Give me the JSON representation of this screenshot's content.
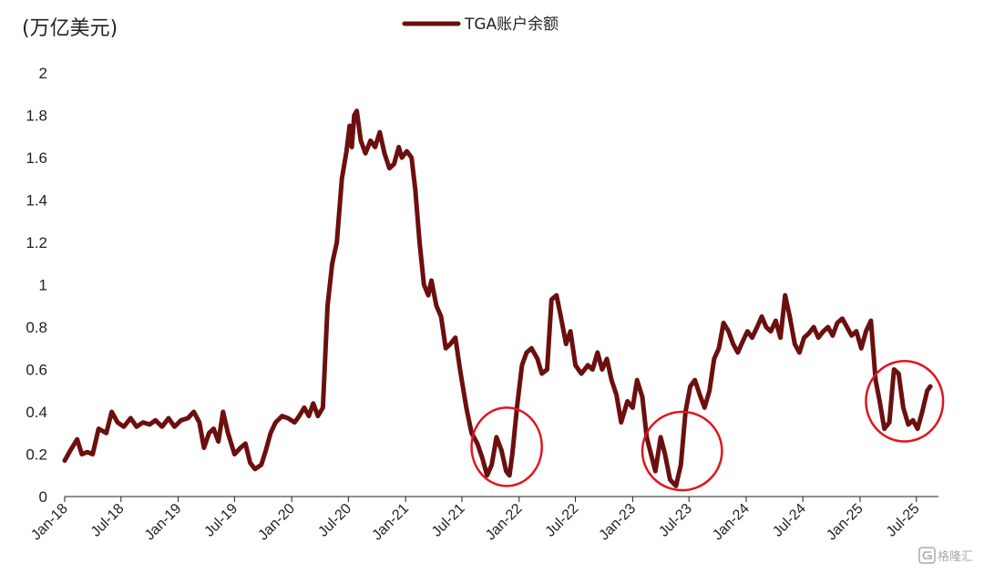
{
  "chart_data": {
    "type": "line",
    "ylabel": "(万亿美元)",
    "ylim": [
      0,
      2
    ],
    "yticks": [
      "0",
      "0.2",
      "0.4",
      "0.6",
      "0.8",
      "1",
      "1.2",
      "1.4",
      "1.6",
      "1.8",
      "2"
    ],
    "xticks": [
      "Jan-18",
      "Jul-18",
      "Jan-19",
      "Jul-19",
      "Jan-20",
      "Jul-20",
      "Jan-21",
      "Jul-21",
      "Jan-22",
      "Jul-22",
      "Jan-23",
      "Jul-23",
      "Jan-24",
      "Jul-24",
      "Jan-25",
      "Jul-25"
    ],
    "legend_position": "top-center",
    "grid": false,
    "series": [
      {
        "name": "TGA账户余额",
        "color": "#6b0f0f",
        "points": [
          [
            "2018-01-01",
            0.17
          ],
          [
            "2018-01-20",
            0.22
          ],
          [
            "2018-02-10",
            0.27
          ],
          [
            "2018-02-25",
            0.2
          ],
          [
            "2018-03-15",
            0.21
          ],
          [
            "2018-04-01",
            0.2
          ],
          [
            "2018-04-20",
            0.32
          ],
          [
            "2018-05-15",
            0.3
          ],
          [
            "2018-06-01",
            0.4
          ],
          [
            "2018-06-20",
            0.35
          ],
          [
            "2018-07-10",
            0.33
          ],
          [
            "2018-08-01",
            0.37
          ],
          [
            "2018-08-20",
            0.33
          ],
          [
            "2018-09-10",
            0.35
          ],
          [
            "2018-10-01",
            0.34
          ],
          [
            "2018-10-20",
            0.36
          ],
          [
            "2018-11-10",
            0.33
          ],
          [
            "2018-12-01",
            0.37
          ],
          [
            "2018-12-20",
            0.33
          ],
          [
            "2019-01-10",
            0.36
          ],
          [
            "2019-02-01",
            0.37
          ],
          [
            "2019-02-20",
            0.4
          ],
          [
            "2019-03-10",
            0.35
          ],
          [
            "2019-03-25",
            0.23
          ],
          [
            "2019-04-10",
            0.3
          ],
          [
            "2019-04-25",
            0.32
          ],
          [
            "2019-05-10",
            0.26
          ],
          [
            "2019-05-25",
            0.4
          ],
          [
            "2019-06-10",
            0.3
          ],
          [
            "2019-07-01",
            0.2
          ],
          [
            "2019-07-20",
            0.23
          ],
          [
            "2019-08-05",
            0.25
          ],
          [
            "2019-08-20",
            0.16
          ],
          [
            "2019-09-05",
            0.13
          ],
          [
            "2019-09-25",
            0.15
          ],
          [
            "2019-10-10",
            0.22
          ],
          [
            "2019-10-25",
            0.3
          ],
          [
            "2019-11-10",
            0.35
          ],
          [
            "2019-12-01",
            0.38
          ],
          [
            "2019-12-20",
            0.37
          ],
          [
            "2020-01-10",
            0.35
          ],
          [
            "2020-01-25",
            0.38
          ],
          [
            "2020-02-10",
            0.42
          ],
          [
            "2020-02-25",
            0.38
          ],
          [
            "2020-03-10",
            0.44
          ],
          [
            "2020-03-25",
            0.38
          ],
          [
            "2020-04-10",
            0.42
          ],
          [
            "2020-04-25",
            0.9
          ],
          [
            "2020-05-10",
            1.1
          ],
          [
            "2020-05-25",
            1.2
          ],
          [
            "2020-06-10",
            1.5
          ],
          [
            "2020-06-25",
            1.63
          ],
          [
            "2020-07-05",
            1.75
          ],
          [
            "2020-07-12",
            1.65
          ],
          [
            "2020-07-20",
            1.8
          ],
          [
            "2020-07-28",
            1.82
          ],
          [
            "2020-08-10",
            1.68
          ],
          [
            "2020-08-25",
            1.62
          ],
          [
            "2020-09-10",
            1.68
          ],
          [
            "2020-09-25",
            1.65
          ],
          [
            "2020-10-10",
            1.72
          ],
          [
            "2020-10-25",
            1.62
          ],
          [
            "2020-11-10",
            1.55
          ],
          [
            "2020-11-25",
            1.57
          ],
          [
            "2020-12-10",
            1.65
          ],
          [
            "2020-12-20",
            1.6
          ],
          [
            "2021-01-05",
            1.63
          ],
          [
            "2021-01-20",
            1.6
          ],
          [
            "2021-02-01",
            1.45
          ],
          [
            "2021-02-15",
            1.2
          ],
          [
            "2021-03-01",
            1.0
          ],
          [
            "2021-03-15",
            0.95
          ],
          [
            "2021-03-25",
            1.02
          ],
          [
            "2021-04-10",
            0.9
          ],
          [
            "2021-04-25",
            0.85
          ],
          [
            "2021-05-10",
            0.7
          ],
          [
            "2021-05-25",
            0.72
          ],
          [
            "2021-06-10",
            0.75
          ],
          [
            "2021-06-25",
            0.6
          ],
          [
            "2021-07-15",
            0.42
          ],
          [
            "2021-08-01",
            0.3
          ],
          [
            "2021-08-20",
            0.25
          ],
          [
            "2021-09-05",
            0.18
          ],
          [
            "2021-09-20",
            0.1
          ],
          [
            "2021-10-05",
            0.15
          ],
          [
            "2021-10-20",
            0.28
          ],
          [
            "2021-11-05",
            0.22
          ],
          [
            "2021-11-20",
            0.12
          ],
          [
            "2021-12-01",
            0.1
          ],
          [
            "2021-12-10",
            0.2
          ],
          [
            "2021-12-25",
            0.42
          ],
          [
            "2022-01-10",
            0.62
          ],
          [
            "2022-01-25",
            0.68
          ],
          [
            "2022-02-10",
            0.7
          ],
          [
            "2022-03-01",
            0.65
          ],
          [
            "2022-03-15",
            0.58
          ],
          [
            "2022-04-01",
            0.6
          ],
          [
            "2022-04-15",
            0.93
          ],
          [
            "2022-05-01",
            0.95
          ],
          [
            "2022-05-15",
            0.85
          ],
          [
            "2022-06-01",
            0.72
          ],
          [
            "2022-06-15",
            0.78
          ],
          [
            "2022-07-01",
            0.62
          ],
          [
            "2022-07-20",
            0.58
          ],
          [
            "2022-08-10",
            0.62
          ],
          [
            "2022-08-25",
            0.6
          ],
          [
            "2022-09-10",
            0.68
          ],
          [
            "2022-09-25",
            0.6
          ],
          [
            "2022-10-10",
            0.65
          ],
          [
            "2022-10-25",
            0.55
          ],
          [
            "2022-11-10",
            0.48
          ],
          [
            "2022-11-25",
            0.35
          ],
          [
            "2022-12-15",
            0.45
          ],
          [
            "2023-01-01",
            0.42
          ],
          [
            "2023-01-15",
            0.55
          ],
          [
            "2023-02-01",
            0.47
          ],
          [
            "2023-02-15",
            0.28
          ],
          [
            "2023-03-01",
            0.2
          ],
          [
            "2023-03-15",
            0.12
          ],
          [
            "2023-04-01",
            0.28
          ],
          [
            "2023-04-15",
            0.2
          ],
          [
            "2023-05-01",
            0.08
          ],
          [
            "2023-05-20",
            0.05
          ],
          [
            "2023-06-05",
            0.15
          ],
          [
            "2023-06-20",
            0.4
          ],
          [
            "2023-07-05",
            0.52
          ],
          [
            "2023-07-20",
            0.55
          ],
          [
            "2023-08-05",
            0.48
          ],
          [
            "2023-08-20",
            0.42
          ],
          [
            "2023-09-05",
            0.5
          ],
          [
            "2023-09-20",
            0.65
          ],
          [
            "2023-10-05",
            0.7
          ],
          [
            "2023-10-20",
            0.82
          ],
          [
            "2023-11-05",
            0.78
          ],
          [
            "2023-11-20",
            0.72
          ],
          [
            "2023-12-05",
            0.68
          ],
          [
            "2023-12-20",
            0.73
          ],
          [
            "2024-01-05",
            0.78
          ],
          [
            "2024-01-20",
            0.75
          ],
          [
            "2024-02-05",
            0.8
          ],
          [
            "2024-02-20",
            0.85
          ],
          [
            "2024-03-05",
            0.8
          ],
          [
            "2024-03-20",
            0.78
          ],
          [
            "2024-04-05",
            0.83
          ],
          [
            "2024-04-20",
            0.75
          ],
          [
            "2024-05-05",
            0.95
          ],
          [
            "2024-05-20",
            0.85
          ],
          [
            "2024-06-05",
            0.72
          ],
          [
            "2024-06-20",
            0.68
          ],
          [
            "2024-07-05",
            0.75
          ],
          [
            "2024-07-20",
            0.77
          ],
          [
            "2024-08-05",
            0.8
          ],
          [
            "2024-08-20",
            0.75
          ],
          [
            "2024-09-05",
            0.78
          ],
          [
            "2024-09-20",
            0.8
          ],
          [
            "2024-10-05",
            0.76
          ],
          [
            "2024-10-20",
            0.82
          ],
          [
            "2024-11-05",
            0.84
          ],
          [
            "2024-11-20",
            0.8
          ],
          [
            "2024-12-05",
            0.76
          ],
          [
            "2024-12-20",
            0.78
          ],
          [
            "2025-01-05",
            0.7
          ],
          [
            "2025-01-20",
            0.78
          ],
          [
            "2025-02-05",
            0.83
          ],
          [
            "2025-02-20",
            0.55
          ],
          [
            "2025-03-05",
            0.45
          ],
          [
            "2025-03-20",
            0.32
          ],
          [
            "2025-04-05",
            0.35
          ],
          [
            "2025-04-20",
            0.6
          ],
          [
            "2025-05-05",
            0.58
          ],
          [
            "2025-05-20",
            0.42
          ],
          [
            "2025-06-05",
            0.34
          ],
          [
            "2025-06-20",
            0.36
          ],
          [
            "2025-07-05",
            0.32
          ],
          [
            "2025-07-20",
            0.4
          ],
          [
            "2025-08-05",
            0.5
          ],
          [
            "2025-08-15",
            0.52
          ]
        ]
      }
    ],
    "annotations": [
      {
        "shape": "ellipse",
        "color": "#e0141e",
        "from": "2021-08-01",
        "to": "2022-03-15",
        "ymin": 0.05,
        "ymax": 0.42
      },
      {
        "shape": "ellipse",
        "color": "#e0141e",
        "from": "2023-02-01",
        "to": "2023-10-15",
        "ymin": 0.03,
        "ymax": 0.4
      },
      {
        "shape": "ellipse",
        "color": "#e0141e",
        "from": "2025-01-20",
        "to": "2025-09-25",
        "ymin": 0.26,
        "ymax": 0.64
      }
    ]
  },
  "watermark": {
    "icon": "logo-icon",
    "text": "格隆汇"
  }
}
